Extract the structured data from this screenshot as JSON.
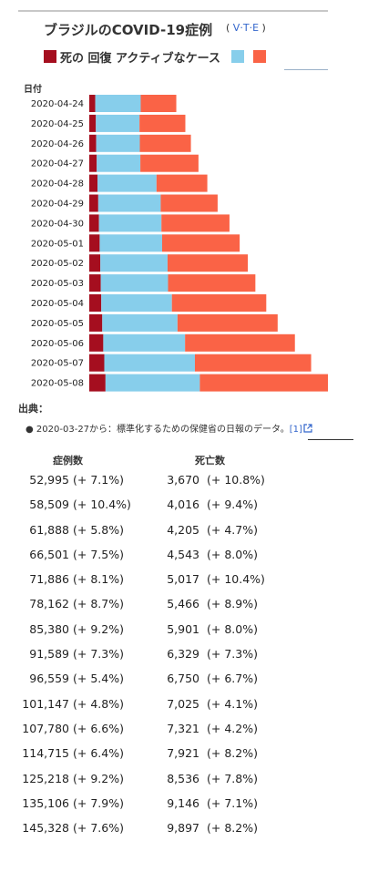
{
  "title": "ブラジルのCOVID-19症例",
  "vte": {
    "open": "(",
    "v": "V",
    "t": "T",
    "e": "E",
    "close": ")"
  },
  "legend": {
    "label": "死の 回復 アクティブなケース"
  },
  "colors": {
    "deaths": "#a50e1f",
    "recovered": "#87ceeb",
    "active": "#fa6346"
  },
  "chart_data": {
    "type": "bar",
    "orientation": "horizontal",
    "stacked": true,
    "xlabel": "日付",
    "categories": [
      "2020-04-24",
      "2020-04-25",
      "2020-04-26",
      "2020-04-27",
      "2020-04-28",
      "2020-04-29",
      "2020-04-30",
      "2020-05-01",
      "2020-05-02",
      "2020-05-03",
      "2020-05-04",
      "2020-05-05",
      "2020-05-06",
      "2020-05-07",
      "2020-05-08"
    ],
    "series": [
      {
        "name": "死の",
        "values": [
          3670,
          4016,
          4205,
          4543,
          5017,
          5466,
          5901,
          6329,
          6750,
          7025,
          7321,
          7921,
          8536,
          9146,
          9897
        ]
      },
      {
        "name": "回復",
        "values": [
          27655,
          26573,
          26573,
          26573,
          35935,
          38039,
          38039,
          38039,
          40937,
          40937,
          42991,
          45815,
          49793,
          55189,
          57436
        ]
      },
      {
        "name": "アクティブなケース",
        "values": [
          21670,
          27920,
          31110,
          35385,
          30934,
          34657,
          41440,
          47221,
          48872,
          53185,
          57468,
          60979,
          66889,
          70771,
          77995
        ]
      }
    ],
    "xlim": [
      0,
      145328
    ],
    "grid": false,
    "legend_position": "top"
  },
  "source": {
    "heading": "出典：",
    "bullet": "●",
    "note": "2020-03-27から：標準化するための保健省の日報のデータ。",
    "ref": "[1]",
    "ext_icon": "external-link-icon"
  },
  "table": {
    "headers": {
      "cases": "症例数",
      "deaths": "死亡数"
    },
    "rows": [
      {
        "cases": "52,995",
        "cases_pct": "(+ 7.1%)",
        "deaths": "3,670",
        "deaths_pct": "(+ 10.8%)"
      },
      {
        "cases": "58,509",
        "cases_pct": "(+ 10.4%)",
        "deaths": "4,016",
        "deaths_pct": "(+ 9.4%)"
      },
      {
        "cases": "61,888",
        "cases_pct": "(+ 5.8%)",
        "deaths": "4,205",
        "deaths_pct": "(+ 4.7%)"
      },
      {
        "cases": "66,501",
        "cases_pct": "(+ 7.5%)",
        "deaths": "4,543",
        "deaths_pct": "(+ 8.0%)"
      },
      {
        "cases": "71,886",
        "cases_pct": "(+ 8.1%)",
        "deaths": "5,017",
        "deaths_pct": "(+ 10.4%)"
      },
      {
        "cases": "78,162",
        "cases_pct": "(+ 8.7%)",
        "deaths": "5,466",
        "deaths_pct": "(+ 8.9%)"
      },
      {
        "cases": "85,380",
        "cases_pct": "(+ 9.2%)",
        "deaths": "5,901",
        "deaths_pct": "(+ 8.0%)"
      },
      {
        "cases": "91,589",
        "cases_pct": "(+ 7.3%)",
        "deaths": "6,329",
        "deaths_pct": "(+ 7.3%)"
      },
      {
        "cases": "96,559",
        "cases_pct": "(+ 5.4%)",
        "deaths": "6,750",
        "deaths_pct": "(+ 6.7%)"
      },
      {
        "cases": "101,147",
        "cases_pct": "(+ 4.8%)",
        "deaths": "7,025",
        "deaths_pct": "(+ 4.1%)"
      },
      {
        "cases": "107,780",
        "cases_pct": "(+ 6.6%)",
        "deaths": "7,321",
        "deaths_pct": "(+ 4.2%)"
      },
      {
        "cases": "114,715",
        "cases_pct": "(+ 6.4%)",
        "deaths": "7,921",
        "deaths_pct": "(+ 8.2%)"
      },
      {
        "cases": "125,218",
        "cases_pct": "(+ 9.2%)",
        "deaths": "8,536",
        "deaths_pct": "(+ 7.8%)"
      },
      {
        "cases": "135,106",
        "cases_pct": "(+ 7.9%)",
        "deaths": "9,146",
        "deaths_pct": "(+ 7.1%)"
      },
      {
        "cases": "145,328",
        "cases_pct": "(+ 7.6%)",
        "deaths": "9,897",
        "deaths_pct": "(+ 8.2%)"
      }
    ]
  }
}
